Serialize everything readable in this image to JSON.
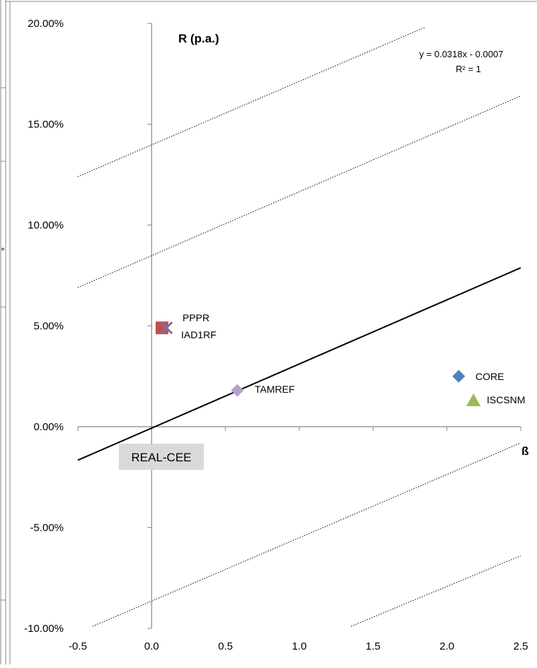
{
  "chart_data": {
    "type": "scatter",
    "title": "",
    "xlabel": "ß",
    "ylabel": "R (p.a.)",
    "xlim": [
      -0.5,
      2.5
    ],
    "ylim": [
      -0.1,
      0.2
    ],
    "x_ticks": [
      "-0.5",
      "0.0",
      "0.5",
      "1.0",
      "1.5",
      "2.0",
      "2.5"
    ],
    "x_tick_values": [
      -0.5,
      0.0,
      0.5,
      1.0,
      1.5,
      2.0,
      2.5
    ],
    "y_ticks": [
      "-10.00%",
      "-5.00%",
      "0.00%",
      "5.00%",
      "10.00%",
      "15.00%",
      "20.00%"
    ],
    "y_tick_values": [
      -0.1,
      -0.05,
      0.0,
      0.05,
      0.1,
      0.15,
      0.2
    ],
    "grid": false,
    "series": [
      {
        "name": "CORE",
        "x": [
          2.08
        ],
        "y": [
          0.025
        ],
        "marker": "diamond",
        "color": "#4f81bd"
      },
      {
        "name": "ISCSNM",
        "x": [
          2.18
        ],
        "y": [
          0.013
        ],
        "marker": "triangle",
        "color": "#9bbb59"
      },
      {
        "name": "PPPR",
        "x": [
          0.07
        ],
        "y": [
          0.049
        ],
        "marker": "square",
        "color": "#c0504d"
      },
      {
        "name": "IAD1RF",
        "x": [
          0.1
        ],
        "y": [
          0.049
        ],
        "marker": "x",
        "color": "#7f6ca0"
      },
      {
        "name": "TAMREF",
        "x": [
          0.58
        ],
        "y": [
          0.018
        ],
        "marker": "diamond",
        "color": "#b3a2c7"
      }
    ],
    "regression_line": {
      "equation": "y = 0.0318x - 0.0007",
      "r_squared": "R² = 1",
      "x": [
        -0.5,
        2.5
      ],
      "y": [
        -0.0166,
        0.0788
      ]
    },
    "dotted_lines": [
      {
        "x": [
          -0.5,
          1.85
        ],
        "y": [
          0.124,
          0.198
        ]
      },
      {
        "x": [
          -0.5,
          2.5
        ],
        "y": [
          0.069,
          0.164
        ]
      },
      {
        "x": [
          -0.4,
          2.5
        ],
        "y": [
          -0.099,
          -0.008
        ]
      },
      {
        "x": [
          1.35,
          2.5
        ],
        "y": [
          -0.099,
          -0.064
        ]
      }
    ],
    "annotation_box": "REAL-CEE",
    "colors": {
      "axis": "#878787",
      "frame": "#878787",
      "line": "#000000",
      "annotation_bg": "#d9d9d9"
    }
  }
}
